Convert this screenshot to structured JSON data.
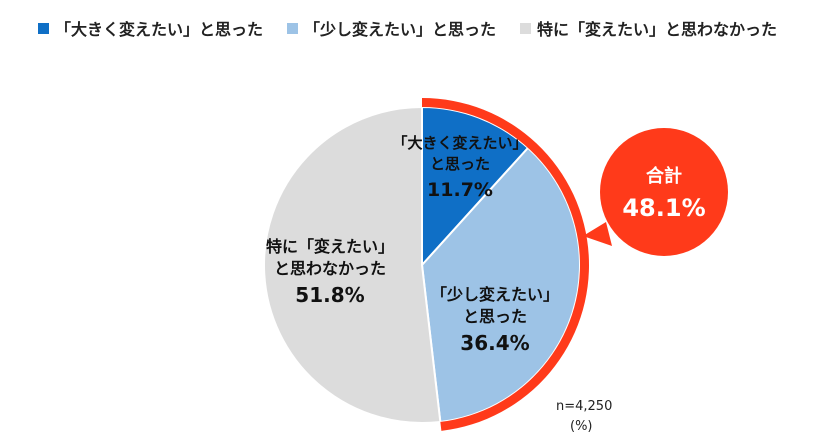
{
  "colors": {
    "slice_dark_blue": "#0f6fc6",
    "slice_light_blue": "#9dc3e6",
    "slice_gray": "#dcdcdc",
    "accent_red": "#ff3a1a",
    "text_white": "#ffffff"
  },
  "legend": [
    {
      "label": "「大きく変えたい」と思った",
      "color": "#0f6fc6"
    },
    {
      "label": "「少し変えたい」と思った",
      "color": "#9dc3e6"
    },
    {
      "label": "特に「変えたい」と思わなかった",
      "color": "#dcdcdc"
    }
  ],
  "chart_data": {
    "type": "pie",
    "title": "",
    "unit": "(%)",
    "sample_size": "n=4,250",
    "slices": [
      {
        "name": "「大きく変えたい」と思った",
        "value": 11.7,
        "label_lines": [
          "「大きく変えたい」",
          "と思った"
        ],
        "value_text": "11.7%",
        "color": "#0f6fc6"
      },
      {
        "name": "「少し変えたい」と思った",
        "value": 36.4,
        "label_lines": [
          "「少し変えたい」",
          "と思った"
        ],
        "value_text": "36.4%",
        "color": "#9dc3e6"
      },
      {
        "name": "特に「変えたい」と思わなかった",
        "value": 51.8,
        "label_lines": [
          "特に「変えたい」",
          "と思わなかった"
        ],
        "value_text": "51.8%",
        "color": "#dcdcdc"
      }
    ],
    "total_callout": {
      "label": "合計",
      "value": 48.1,
      "value_text": "48.1%"
    },
    "start_angle_deg": 0,
    "direction": "clockwise"
  }
}
